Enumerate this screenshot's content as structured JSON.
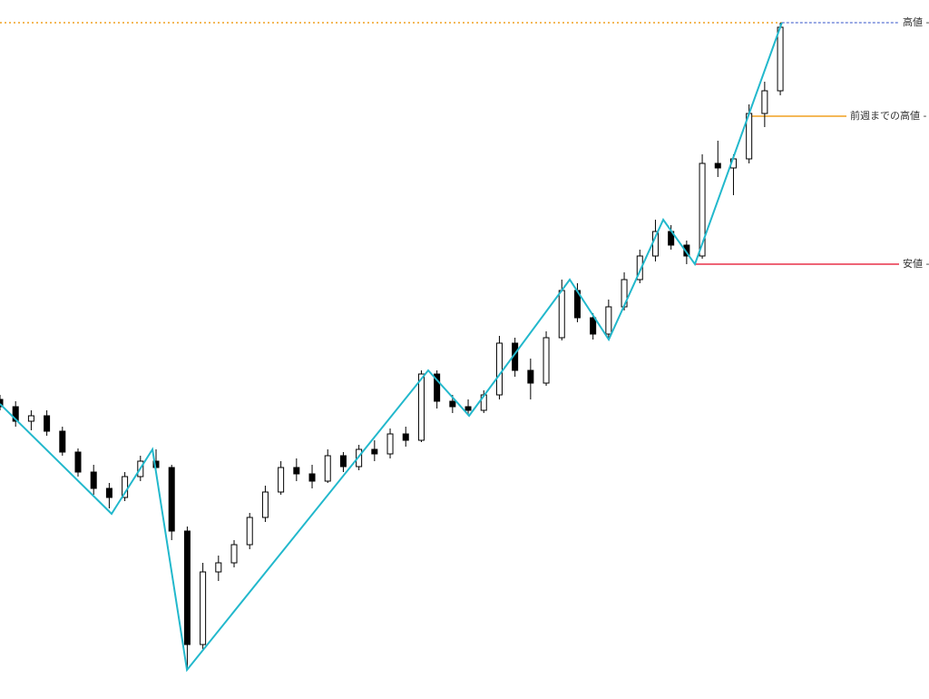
{
  "chart_data": {
    "type": "candlestick",
    "xlim": [
      0,
      59.53
    ],
    "ylim": [
      0,
      770
    ],
    "up_color": "#ffffff",
    "down_color": "#000000",
    "border_color": "#000000",
    "open": [
      330,
      322,
      306,
      312,
      295,
      272,
      250,
      232,
      222,
      245,
      262,
      255,
      185,
      60,
      140,
      150,
      170,
      200,
      228,
      255,
      248,
      240,
      268,
      256,
      275,
      270,
      292,
      285,
      358,
      328,
      322,
      318,
      335,
      392,
      362,
      348,
      398,
      450,
      420,
      402,
      432,
      462,
      488,
      515,
      500,
      488,
      590,
      585,
      595,
      645,
      670
    ],
    "high": [
      335,
      328,
      318,
      318,
      300,
      276,
      258,
      238,
      250,
      268,
      275,
      258,
      190,
      150,
      158,
      175,
      205,
      235,
      262,
      265,
      258,
      275,
      272,
      280,
      285,
      298,
      300,
      362,
      362,
      335,
      330,
      340,
      400,
      398,
      375,
      405,
      462,
      458,
      425,
      440,
      470,
      495,
      528,
      522,
      505,
      600,
      615,
      600,
      655,
      680,
      745
    ],
    "low": [
      318,
      300,
      296,
      290,
      268,
      245,
      225,
      210,
      218,
      240,
      248,
      175,
      32,
      55,
      130,
      145,
      165,
      195,
      225,
      240,
      232,
      238,
      250,
      252,
      262,
      265,
      278,
      283,
      320,
      315,
      312,
      315,
      330,
      355,
      330,
      345,
      395,
      415,
      396,
      398,
      428,
      458,
      482,
      495,
      479,
      485,
      575,
      555,
      590,
      630,
      665
    ],
    "close": [
      322,
      306,
      312,
      295,
      272,
      250,
      232,
      222,
      245,
      262,
      255,
      185,
      60,
      140,
      150,
      170,
      200,
      228,
      255,
      248,
      240,
      268,
      256,
      275,
      270,
      292,
      285,
      358,
      328,
      322,
      318,
      335,
      392,
      362,
      348,
      398,
      450,
      420,
      402,
      432,
      462,
      488,
      515,
      500,
      488,
      590,
      585,
      595,
      645,
      670,
      740
    ],
    "zigzag": {
      "color": "#22b8cc",
      "x": [
        0,
        7.15,
        9.77,
        11.98,
        27.44,
        30.06,
        36.51,
        39.01,
        42.5,
        44.53,
        50.1
      ],
      "values": [
        325,
        204,
        275,
        32,
        362,
        312,
        462,
        396,
        528,
        479,
        745
      ]
    },
    "levels": [
      {
        "label": "高値 -",
        "value": 745,
        "from": 0,
        "color": "#f0a020",
        "style": "dotted",
        "extension_from": 50.1,
        "extension_color": "#3050c8"
      },
      {
        "label": "前週までの高値 -",
        "value": 642,
        "from": 48,
        "color": "#f0a020",
        "style": "solid"
      },
      {
        "label": "安値 -",
        "value": 479,
        "from": 44.53,
        "color": "#e83048",
        "style": "solid"
      }
    ]
  }
}
